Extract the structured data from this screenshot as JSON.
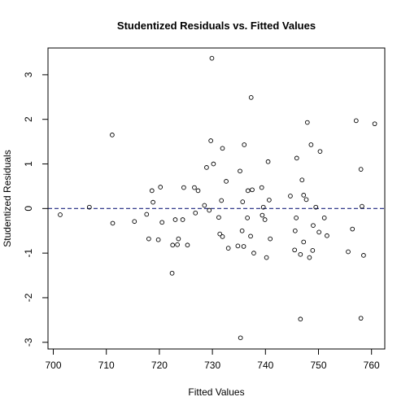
{
  "chart_data": {
    "type": "scatter",
    "title": "Studentized Residuals vs. Fitted Values",
    "xlabel": "Fitted Values",
    "ylabel": "Studentized Residuals",
    "xlim": [
      699,
      762.5
    ],
    "ylim": [
      -3.15,
      3.6
    ],
    "xticks": [
      700,
      710,
      720,
      730,
      740,
      750,
      760
    ],
    "xtick_labels": [
      "700",
      "710",
      "720",
      "730",
      "740",
      "750",
      "760"
    ],
    "yticks": [
      -3,
      -2,
      -1,
      0,
      1,
      2,
      3
    ],
    "ytick_labels": [
      "-3",
      "-2",
      "-1",
      "0",
      "1",
      "2",
      "3"
    ],
    "reference_line": {
      "y": 0,
      "style": "dashed",
      "color": "#1a237e"
    },
    "grid": false,
    "marker": "open-circle",
    "points": [
      [
        701.3,
        -0.14
      ],
      [
        706.8,
        0.03
      ],
      [
        711.1,
        1.65
      ],
      [
        711.2,
        -0.33
      ],
      [
        715.3,
        -0.29
      ],
      [
        717.6,
        -0.13
      ],
      [
        718.0,
        -0.68
      ],
      [
        718.6,
        0.4
      ],
      [
        718.8,
        0.14
      ],
      [
        719.8,
        -0.7
      ],
      [
        720.2,
        0.48
      ],
      [
        720.5,
        -0.31
      ],
      [
        722.4,
        -1.45
      ],
      [
        722.5,
        -0.82
      ],
      [
        723.0,
        -0.25
      ],
      [
        723.4,
        -0.81
      ],
      [
        723.6,
        -0.68
      ],
      [
        724.4,
        -0.25
      ],
      [
        724.6,
        0.47
      ],
      [
        725.3,
        -0.82
      ],
      [
        726.6,
        0.47
      ],
      [
        726.8,
        -0.1
      ],
      [
        727.3,
        0.4
      ],
      [
        728.5,
        0.07
      ],
      [
        728.9,
        0.92
      ],
      [
        729.4,
        -0.04
      ],
      [
        729.7,
        1.52
      ],
      [
        729.9,
        3.37
      ],
      [
        730.2,
        1.0
      ],
      [
        731.2,
        -0.2
      ],
      [
        731.4,
        -0.57
      ],
      [
        731.7,
        0.18
      ],
      [
        731.9,
        -0.63
      ],
      [
        731.9,
        1.35
      ],
      [
        732.6,
        0.61
      ],
      [
        733.0,
        -0.89
      ],
      [
        734.8,
        -0.84
      ],
      [
        735.2,
        0.84
      ],
      [
        735.3,
        -2.9
      ],
      [
        735.6,
        -0.5
      ],
      [
        735.7,
        0.15
      ],
      [
        735.9,
        -0.85
      ],
      [
        736.0,
        1.43
      ],
      [
        736.6,
        -0.21
      ],
      [
        736.7,
        0.4
      ],
      [
        737.2,
        -0.62
      ],
      [
        737.3,
        2.49
      ],
      [
        737.5,
        0.42
      ],
      [
        737.8,
        -1.0
      ],
      [
        739.3,
        0.47
      ],
      [
        739.4,
        -0.15
      ],
      [
        739.6,
        0.03
      ],
      [
        739.9,
        -0.25
      ],
      [
        740.2,
        -1.1
      ],
      [
        740.5,
        1.05
      ],
      [
        740.7,
        0.19
      ],
      [
        740.9,
        -0.68
      ],
      [
        744.7,
        0.28
      ],
      [
        745.5,
        -0.93
      ],
      [
        745.6,
        -0.5
      ],
      [
        745.8,
        -0.21
      ],
      [
        745.9,
        1.13
      ],
      [
        746.6,
        -2.48
      ],
      [
        746.6,
        -1.03
      ],
      [
        746.9,
        0.64
      ],
      [
        747.2,
        -0.75
      ],
      [
        747.2,
        0.3
      ],
      [
        747.7,
        0.2
      ],
      [
        747.9,
        1.93
      ],
      [
        748.3,
        -1.1
      ],
      [
        748.6,
        1.43
      ],
      [
        748.9,
        -0.94
      ],
      [
        749.0,
        -0.38
      ],
      [
        749.5,
        0.03
      ],
      [
        750.1,
        -0.53
      ],
      [
        750.3,
        1.28
      ],
      [
        751.1,
        -0.21
      ],
      [
        751.6,
        -0.61
      ],
      [
        755.6,
        -0.97
      ],
      [
        756.4,
        -0.46
      ],
      [
        757.1,
        1.97
      ],
      [
        758.0,
        0.88
      ],
      [
        758.0,
        -2.46
      ],
      [
        758.2,
        0.05
      ],
      [
        758.5,
        -1.05
      ],
      [
        760.6,
        1.9
      ]
    ]
  }
}
